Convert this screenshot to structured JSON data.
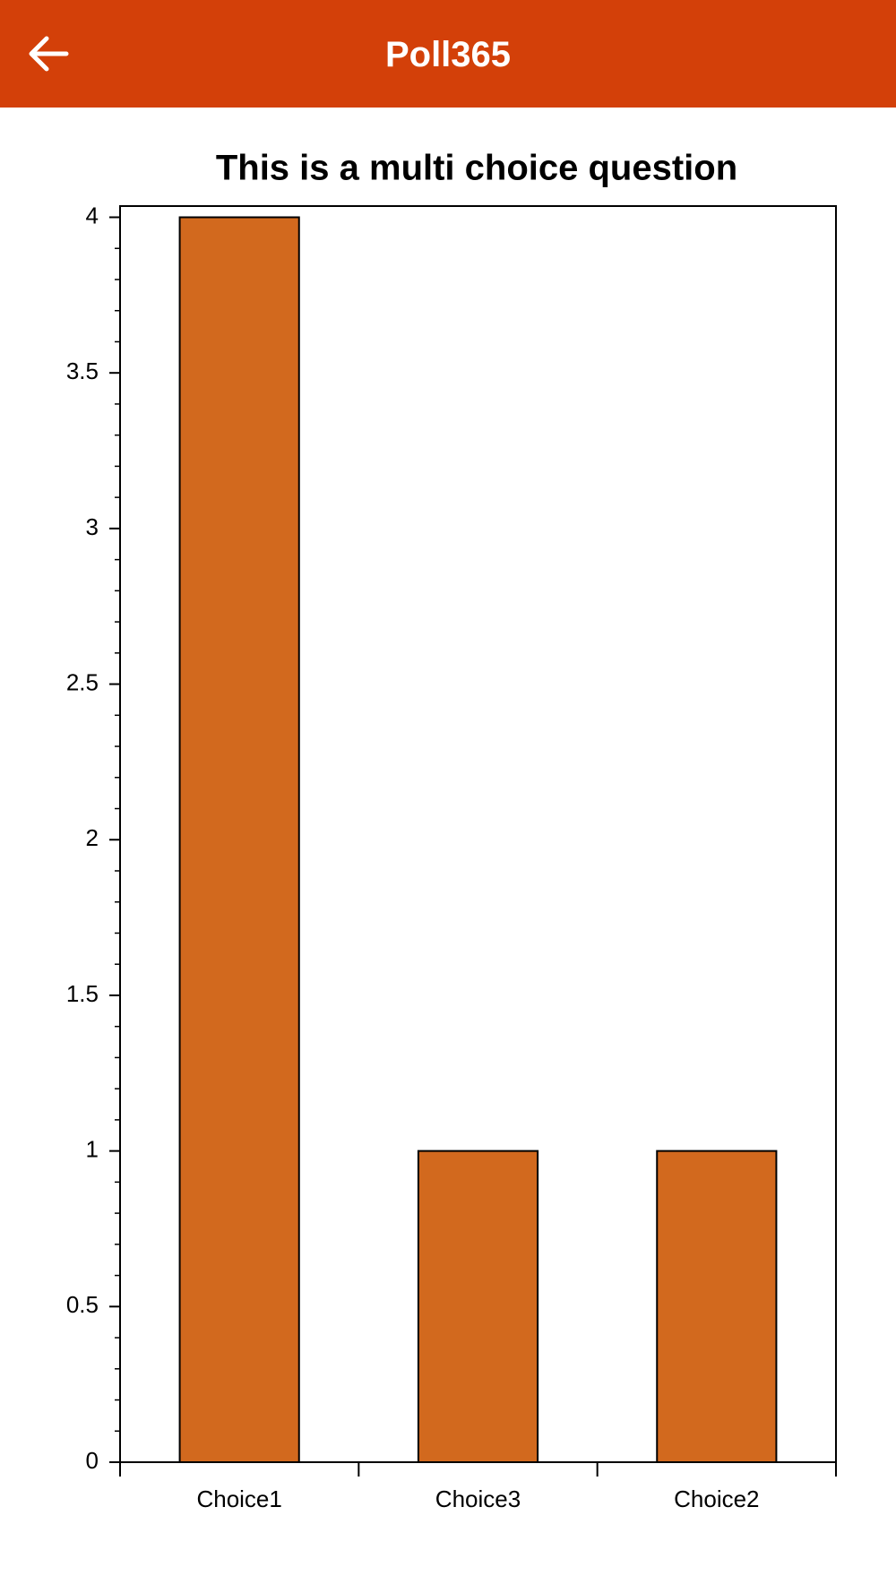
{
  "header": {
    "title": "Poll365"
  },
  "chart_data": {
    "type": "bar",
    "title": "This is a multi choice question",
    "categories": [
      "Choice1",
      "Choice3",
      "Choice2"
    ],
    "values": [
      4,
      1,
      1
    ],
    "color": "#d2691e",
    "ylim": [
      0,
      4.036
    ],
    "yticks": [
      0,
      0.5,
      1,
      1.5,
      2,
      2.5,
      3,
      3.5,
      4
    ],
    "grid": false
  }
}
